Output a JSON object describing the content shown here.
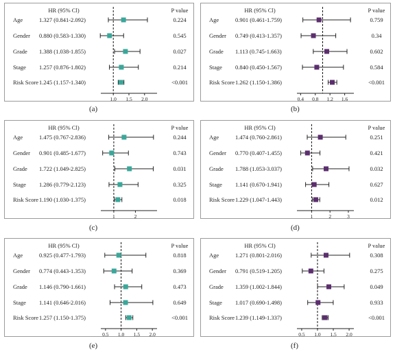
{
  "header": {
    "hr_col": "HR (95% Cl)",
    "p_col": "P value"
  },
  "chart_data": [
    {
      "type": "forest",
      "panel_label": "(a)",
      "marker_color": "#3aa79a",
      "xlim": [
        0.6,
        2.4
      ],
      "ref_line": 1.0,
      "ticks": [
        1.0,
        1.5,
        2.0
      ],
      "tick_labels": [
        "1.0",
        "1.5",
        "2.0"
      ],
      "rows": [
        {
          "label": "Age",
          "hr_text": "1.327 (0.841-2.092)",
          "p": "0.224",
          "hr": 1.327,
          "lo": 0.841,
          "hi": 2.092
        },
        {
          "label": "Gender",
          "hr_text": "0.880 (0.583-1.330)",
          "p": "0.545",
          "hr": 0.88,
          "lo": 0.583,
          "hi": 1.33
        },
        {
          "label": "Grade",
          "hr_text": "1.388 (1.038-1.855)",
          "p": "0.027",
          "hr": 1.388,
          "lo": 1.038,
          "hi": 1.855
        },
        {
          "label": "Stage",
          "hr_text": "1.257 (0.876-1.802)",
          "p": "0.214",
          "hr": 1.257,
          "lo": 0.876,
          "hi": 1.802
        },
        {
          "label": "Risk Score",
          "hr_text": "1.245 (1.157-1.340)",
          "p": "<0.001",
          "hr": 1.245,
          "lo": 1.157,
          "hi": 1.34
        }
      ]
    },
    {
      "type": "forest",
      "panel_label": "(b)",
      "marker_color": "#5b2e6e",
      "xlim": [
        0.3,
        1.85
      ],
      "ref_line": 1.0,
      "ticks": [
        0.4,
        0.8,
        1.2,
        1.6
      ],
      "tick_labels": [
        "0.4",
        "0.8",
        "1.2",
        "1.6"
      ],
      "rows": [
        {
          "label": "Age",
          "hr_text": "0.901 (0.461-1.759)",
          "p": "0.759",
          "hr": 0.901,
          "lo": 0.461,
          "hi": 1.759
        },
        {
          "label": "Gender",
          "hr_text": "0.749 (0.413-1.357)",
          "p": "0.34",
          "hr": 0.749,
          "lo": 0.413,
          "hi": 1.357
        },
        {
          "label": "Grade",
          "hr_text": "1.113 (0.745-1.663)",
          "p": "0.602",
          "hr": 1.113,
          "lo": 0.745,
          "hi": 1.663
        },
        {
          "label": "Stage",
          "hr_text": "0.840 (0.450-1.567)",
          "p": "0.584",
          "hr": 0.84,
          "lo": 0.45,
          "hi": 1.567
        },
        {
          "label": "Risk Score",
          "hr_text": "1.262 (1.150-1.386)",
          "p": "<0.001",
          "hr": 1.262,
          "lo": 1.15,
          "hi": 1.386
        }
      ]
    },
    {
      "type": "forest",
      "panel_label": "(c)",
      "marker_color": "#3aa79a",
      "xlim": [
        0.4,
        3.0
      ],
      "ref_line": 1.0,
      "ticks": [
        1,
        2
      ],
      "tick_labels": [
        "1",
        "2"
      ],
      "rows": [
        {
          "label": "Age",
          "hr_text": "1.475 (0.767-2.836)",
          "p": "0.244",
          "hr": 1.475,
          "lo": 0.767,
          "hi": 2.836
        },
        {
          "label": "Gender",
          "hr_text": "0.901 (0.485-1.677)",
          "p": "0.743",
          "hr": 0.901,
          "lo": 0.485,
          "hi": 1.677
        },
        {
          "label": "Grade",
          "hr_text": "1.722 (1.049-2.825)",
          "p": "0.031",
          "hr": 1.722,
          "lo": 1.049,
          "hi": 2.825
        },
        {
          "label": "Stage",
          "hr_text": "1.286 (0.779-2.123)",
          "p": "0.325",
          "hr": 1.286,
          "lo": 0.779,
          "hi": 2.123
        },
        {
          "label": "Risk Score",
          "hr_text": "1.190 (1.030-1.375)",
          "p": "0.018",
          "hr": 1.19,
          "lo": 1.03,
          "hi": 1.375
        }
      ]
    },
    {
      "type": "forest",
      "panel_label": "(d)",
      "marker_color": "#5b2e6e",
      "xlim": [
        0.2,
        3.3
      ],
      "ref_line": 1.0,
      "ticks": [
        1,
        2,
        3
      ],
      "tick_labels": [
        "1",
        "2",
        "3"
      ],
      "rows": [
        {
          "label": "Age",
          "hr_text": "1.474 (0.760-2.861)",
          "p": "0.251",
          "hr": 1.474,
          "lo": 0.76,
          "hi": 2.861
        },
        {
          "label": "Gender",
          "hr_text": "0.770 (0.407-1.455)",
          "p": "0.421",
          "hr": 0.77,
          "lo": 0.407,
          "hi": 1.455
        },
        {
          "label": "Grade",
          "hr_text": "1.788 (1.053-3.037)",
          "p": "0.032",
          "hr": 1.788,
          "lo": 1.053,
          "hi": 3.037
        },
        {
          "label": "Stage",
          "hr_text": "1.141 (0.670-1.941)",
          "p": "0.627",
          "hr": 1.141,
          "lo": 0.67,
          "hi": 1.941
        },
        {
          "label": "Risk Score",
          "hr_text": "1.229 (1.047-1.443)",
          "p": "0.012",
          "hr": 1.229,
          "lo": 1.047,
          "hi": 1.443
        }
      ]
    },
    {
      "type": "forest",
      "panel_label": "(e)",
      "marker_color": "#3aa79a",
      "xlim": [
        0.35,
        2.15
      ],
      "ref_line": 1.0,
      "ticks": [
        0.5,
        1.0,
        1.5,
        2.0
      ],
      "tick_labels": [
        "0.5",
        "1.0",
        "1.5",
        "2.0"
      ],
      "rows": [
        {
          "label": "Age",
          "hr_text": "0.925 (0.477-1.793)",
          "p": "0.818",
          "hr": 0.925,
          "lo": 0.477,
          "hi": 1.793
        },
        {
          "label": "Gender",
          "hr_text": "0.774 (0.443-1.353)",
          "p": "0.369",
          "hr": 0.774,
          "lo": 0.443,
          "hi": 1.353
        },
        {
          "label": "Grade",
          "hr_text": "1.146 (0.790-1.661)",
          "p": "0.473",
          "hr": 1.146,
          "lo": 0.79,
          "hi": 1.661
        },
        {
          "label": "Stage",
          "hr_text": "1.141 (0.646-2.016)",
          "p": "0.649",
          "hr": 1.141,
          "lo": 0.646,
          "hi": 2.016
        },
        {
          "label": "Risk Score",
          "hr_text": "1.257 (1.150-1.375)",
          "p": "<0.001",
          "hr": 1.257,
          "lo": 1.15,
          "hi": 1.375
        }
      ]
    },
    {
      "type": "forest",
      "panel_label": "(f)",
      "marker_color": "#5b2e6e",
      "xlim": [
        0.35,
        2.15
      ],
      "ref_line": 1.0,
      "ticks": [
        0.5,
        1.0,
        1.5,
        2.0
      ],
      "tick_labels": [
        "0.5",
        "1.0",
        "1.5",
        "2.0"
      ],
      "rows": [
        {
          "label": "Age",
          "hr_text": "1.271 (0.801-2.016)",
          "p": "0.308",
          "hr": 1.271,
          "lo": 0.801,
          "hi": 2.016
        },
        {
          "label": "Gender",
          "hr_text": "0.791 (0.519-1.205)",
          "p": "0.275",
          "hr": 0.791,
          "lo": 0.519,
          "hi": 1.205
        },
        {
          "label": "Grade",
          "hr_text": "1.359 (1.002-1.844)",
          "p": "0.049",
          "hr": 1.359,
          "lo": 1.002,
          "hi": 1.844
        },
        {
          "label": "Stage",
          "hr_text": "1.017 (0.690-1.498)",
          "p": "0.933",
          "hr": 1.017,
          "lo": 0.69,
          "hi": 1.498
        },
        {
          "label": "Risk Score",
          "hr_text": "1.239 (1.149-1.337)",
          "p": "<0.001",
          "hr": 1.239,
          "lo": 1.149,
          "hi": 1.337
        }
      ]
    }
  ]
}
